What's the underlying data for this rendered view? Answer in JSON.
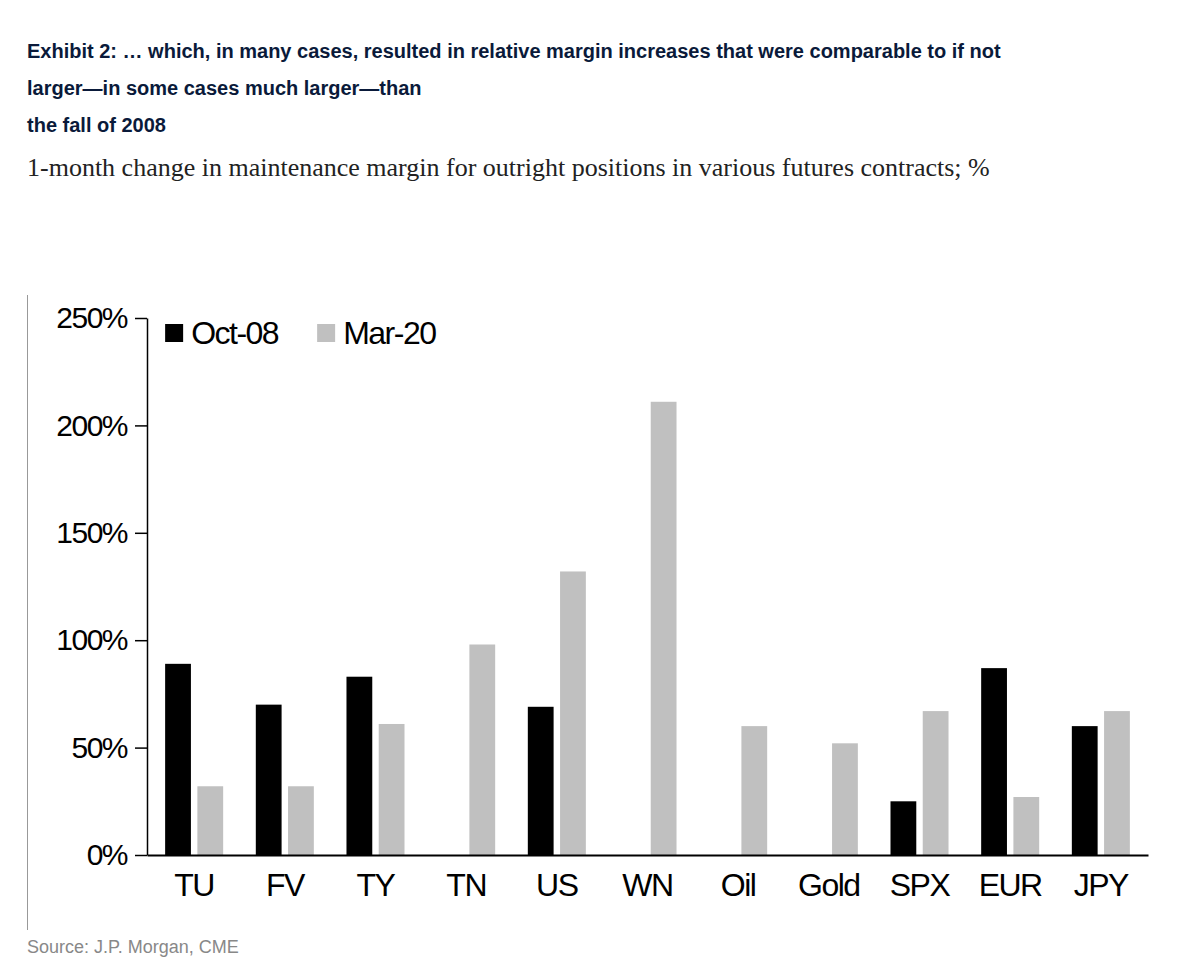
{
  "chart_data": {
    "type": "bar",
    "title": [
      "Exhibit 2: … which, in many cases, resulted in relative margin increases that were comparable to if not",
      "larger—in some cases much larger—than",
      "the fall of 2008"
    ],
    "subtitle": "1-month change in maintenance margin for outright positions in various futures contracts; %",
    "annotations": [
      "Source: J.P. Morgan, CME"
    ],
    "categories": [
      "TU",
      "FV",
      "TY",
      "TN",
      "US",
      "WN",
      "Oil",
      "Gold",
      "SPX",
      "EUR",
      "JPY"
    ],
    "series": [
      {
        "name": "Oct-08",
        "color": "#000000",
        "values": [
          89,
          70,
          83,
          null,
          69,
          null,
          null,
          null,
          25,
          87,
          60
        ]
      },
      {
        "name": "Mar-20",
        "color": "#c0c0c0",
        "values": [
          32,
          32,
          61,
          98,
          132,
          211,
          60,
          52,
          67,
          27,
          67
        ]
      }
    ],
    "ylim": [
      0,
      250
    ],
    "yticks": [
      {
        "value": 0,
        "label": "0%"
      },
      {
        "value": 50,
        "label": "50%"
      },
      {
        "value": 100,
        "label": "100%"
      },
      {
        "value": 150,
        "label": "150%"
      },
      {
        "value": 200,
        "label": "200%"
      },
      {
        "value": 250,
        "label": "250%"
      }
    ],
    "grid": false,
    "legend": "top-left"
  }
}
